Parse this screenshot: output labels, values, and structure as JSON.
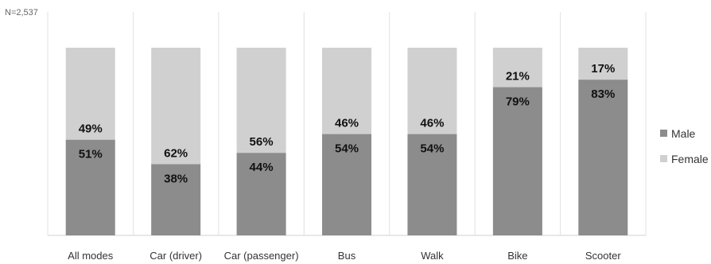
{
  "chart_data": {
    "type": "bar",
    "stacked": true,
    "percent": true,
    "note": "N=2,537",
    "categories": [
      "All modes",
      "Car (driver)",
      "Car (passenger)",
      "Bus",
      "Walk",
      "Bike",
      "Scooter"
    ],
    "series": [
      {
        "name": "Male",
        "color": "#8c8c8c",
        "values": [
          51,
          38,
          44,
          54,
          54,
          79,
          83
        ]
      },
      {
        "name": "Female",
        "color": "#d0d0d0",
        "values": [
          49,
          62,
          56,
          46,
          46,
          21,
          17
        ]
      }
    ],
    "ylim": [
      0,
      100
    ],
    "grid": "vertical separators",
    "legend": "right"
  }
}
